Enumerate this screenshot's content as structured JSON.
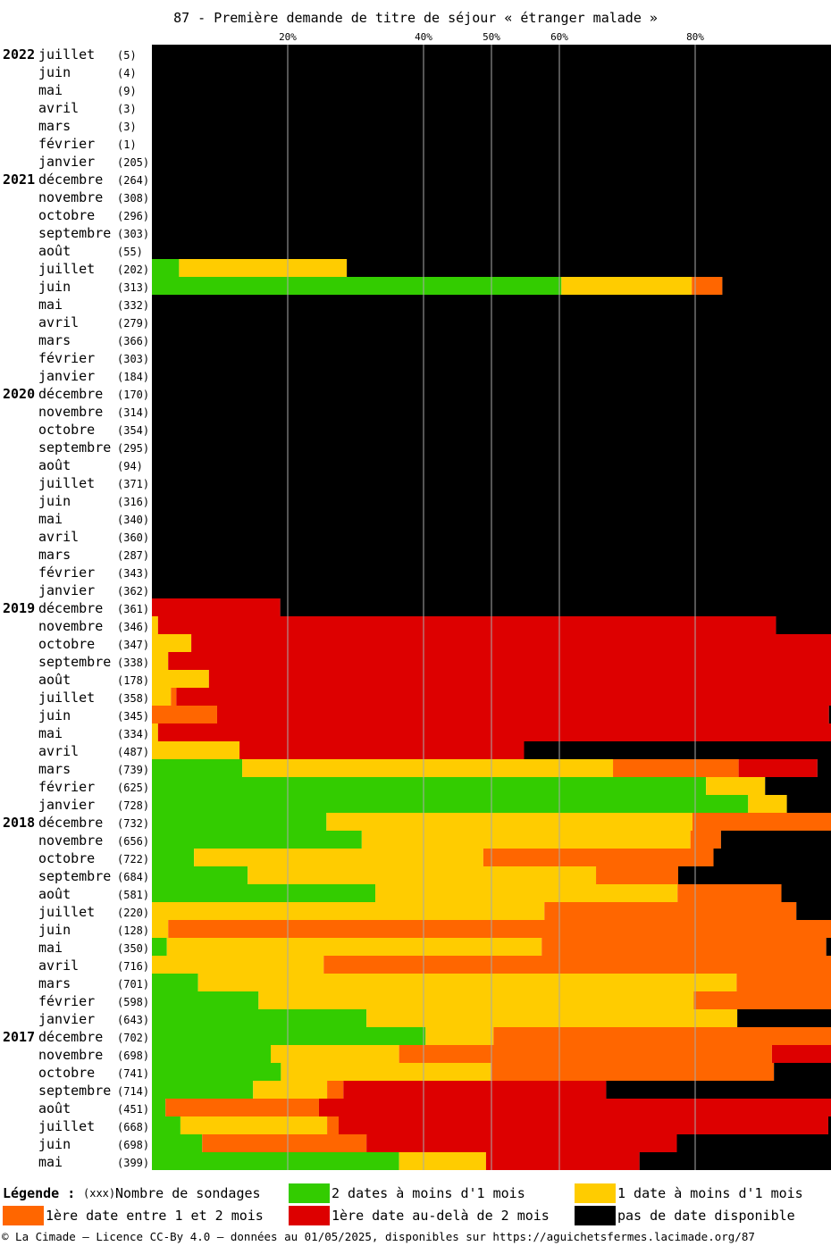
{
  "title": "87 - Première demande de titre de séjour « étranger malade »",
  "chart_data": {
    "type": "bar",
    "orientation": "horizontal-stacked-100",
    "title": "87 - Première demande de titre de séjour « étranger malade »",
    "x_ticks": [
      "20%",
      "40%",
      "50%",
      "60%",
      "80%"
    ],
    "x_tick_values": [
      20,
      40,
      50,
      60,
      80
    ],
    "xlim": [
      0,
      100
    ],
    "grid": true,
    "legend_placement": "bottom",
    "series": [
      {
        "name": "2 dates à moins d'1 mois",
        "color": "#33cc00"
      },
      {
        "name": "1 date à moins d'1 mois",
        "color": "#ffcc00"
      },
      {
        "name": "1ère date entre 1 et 2 mois",
        "color": "#ff6600"
      },
      {
        "name": "1ère date au-delà de 2 mois",
        "color": "#dd0000"
      },
      {
        "name": "pas de date disponible",
        "color": "#000000"
      }
    ],
    "rows": [
      {
        "year": "2022",
        "month": "juillet",
        "count": "(5)",
        "values": [
          0,
          0,
          0,
          0,
          100
        ]
      },
      {
        "year": "",
        "month": "juin",
        "count": "(4)",
        "values": [
          0,
          0,
          0,
          0,
          100
        ]
      },
      {
        "year": "",
        "month": "mai",
        "count": "(9)",
        "values": [
          0,
          0,
          0,
          0,
          100
        ]
      },
      {
        "year": "",
        "month": "avril",
        "count": "(3)",
        "values": [
          0,
          0,
          0,
          0,
          100
        ]
      },
      {
        "year": "",
        "month": "mars",
        "count": "(3)",
        "values": [
          0,
          0,
          0,
          0,
          100
        ]
      },
      {
        "year": "",
        "month": "février",
        "count": "(1)",
        "values": [
          0,
          0,
          0,
          0,
          100
        ]
      },
      {
        "year": "",
        "month": "janvier",
        "count": "(205)",
        "values": [
          0,
          0,
          0,
          0,
          100
        ]
      },
      {
        "year": "2021",
        "month": "décembre",
        "count": "(264)",
        "values": [
          0,
          0,
          0,
          0,
          100
        ]
      },
      {
        "year": "",
        "month": "novembre",
        "count": "(308)",
        "values": [
          0,
          0,
          0,
          0,
          100
        ]
      },
      {
        "year": "",
        "month": "octobre",
        "count": "(296)",
        "values": [
          0,
          0,
          0,
          0,
          100
        ]
      },
      {
        "year": "",
        "month": "septembre",
        "count": "(303)",
        "values": [
          0,
          0,
          0,
          0,
          100
        ]
      },
      {
        "year": "",
        "month": "août",
        "count": "(55)",
        "values": [
          0,
          0,
          0,
          0,
          100
        ]
      },
      {
        "year": "",
        "month": "juillet",
        "count": "(202)",
        "values": [
          4,
          24.7,
          0,
          0,
          71.3
        ]
      },
      {
        "year": "",
        "month": "juin",
        "count": "(313)",
        "values": [
          60.3,
          19.2,
          4.5,
          0,
          16
        ]
      },
      {
        "year": "",
        "month": "mai",
        "count": "(332)",
        "values": [
          0,
          0,
          0,
          0,
          100
        ]
      },
      {
        "year": "",
        "month": "avril",
        "count": "(279)",
        "values": [
          0,
          0,
          0,
          0,
          100
        ]
      },
      {
        "year": "",
        "month": "mars",
        "count": "(366)",
        "values": [
          0,
          0,
          0,
          0,
          100
        ]
      },
      {
        "year": "",
        "month": "février",
        "count": "(303)",
        "values": [
          0,
          0,
          0,
          0,
          100
        ]
      },
      {
        "year": "",
        "month": "janvier",
        "count": "(184)",
        "values": [
          0,
          0,
          0,
          0,
          100
        ]
      },
      {
        "year": "2020",
        "month": "décembre",
        "count": "(170)",
        "values": [
          0,
          0,
          0,
          0,
          100
        ]
      },
      {
        "year": "",
        "month": "novembre",
        "count": "(314)",
        "values": [
          0,
          0,
          0,
          0,
          100
        ]
      },
      {
        "year": "",
        "month": "octobre",
        "count": "(354)",
        "values": [
          0,
          0,
          0,
          0,
          100
        ]
      },
      {
        "year": "",
        "month": "septembre",
        "count": "(295)",
        "values": [
          0,
          0,
          0,
          0,
          100
        ]
      },
      {
        "year": "",
        "month": "août",
        "count": "(94)",
        "values": [
          0,
          0,
          0,
          0,
          100
        ]
      },
      {
        "year": "",
        "month": "juillet",
        "count": "(371)",
        "values": [
          0,
          0,
          0,
          0,
          100
        ]
      },
      {
        "year": "",
        "month": "juin",
        "count": "(316)",
        "values": [
          0,
          0,
          0,
          0,
          100
        ]
      },
      {
        "year": "",
        "month": "mai",
        "count": "(340)",
        "values": [
          0,
          0,
          0,
          0,
          100
        ]
      },
      {
        "year": "",
        "month": "avril",
        "count": "(360)",
        "values": [
          0,
          0,
          0,
          0,
          100
        ]
      },
      {
        "year": "",
        "month": "mars",
        "count": "(287)",
        "values": [
          0,
          0,
          0,
          0,
          100
        ]
      },
      {
        "year": "",
        "month": "février",
        "count": "(343)",
        "values": [
          0,
          0,
          0,
          0,
          100
        ]
      },
      {
        "year": "",
        "month": "janvier",
        "count": "(362)",
        "values": [
          0,
          0,
          0,
          0,
          100
        ]
      },
      {
        "year": "2019",
        "month": "décembre",
        "count": "(361)",
        "values": [
          0,
          0,
          0,
          18.9,
          81.1
        ]
      },
      {
        "year": "",
        "month": "novembre",
        "count": "(346)",
        "values": [
          0,
          0.9,
          0,
          91,
          8.1
        ]
      },
      {
        "year": "",
        "month": "octobre",
        "count": "(347)",
        "values": [
          0,
          5.8,
          0,
          94.2,
          0
        ]
      },
      {
        "year": "",
        "month": "septembre",
        "count": "(338)",
        "values": [
          0,
          2.4,
          0,
          97.6,
          0
        ]
      },
      {
        "year": "",
        "month": "août",
        "count": "(178)",
        "values": [
          0,
          8.4,
          0,
          91.6,
          0
        ]
      },
      {
        "year": "",
        "month": "juillet",
        "count": "(358)",
        "values": [
          0,
          2.8,
          0.8,
          96.4,
          0
        ]
      },
      {
        "year": "",
        "month": "juin",
        "count": "(345)",
        "values": [
          0,
          0,
          9.6,
          90.1,
          0.3
        ]
      },
      {
        "year": "",
        "month": "mai",
        "count": "(334)",
        "values": [
          0,
          0.9,
          0,
          99.1,
          0
        ]
      },
      {
        "year": "",
        "month": "avril",
        "count": "(487)",
        "values": [
          0,
          12.9,
          0,
          41.9,
          45.2
        ]
      },
      {
        "year": "",
        "month": "mars",
        "count": "(739)",
        "values": [
          13.3,
          54.6,
          18.5,
          11.6,
          2
        ]
      },
      {
        "year": "",
        "month": "février",
        "count": "(625)",
        "values": [
          81.6,
          8.7,
          0,
          0,
          9.7
        ]
      },
      {
        "year": "",
        "month": "janvier",
        "count": "(728)",
        "values": [
          87.8,
          5.7,
          0,
          0,
          6.5
        ]
      },
      {
        "year": "2018",
        "month": "décembre",
        "count": "(732)",
        "values": [
          25.7,
          53.9,
          20.4,
          0,
          0
        ]
      },
      {
        "year": "",
        "month": "novembre",
        "count": "(656)",
        "values": [
          30.9,
          48.4,
          4.5,
          0,
          16.2
        ]
      },
      {
        "year": "",
        "month": "octobre",
        "count": "(722)",
        "values": [
          6.2,
          42.6,
          33.9,
          0,
          17.3
        ]
      },
      {
        "year": "",
        "month": "septembre",
        "count": "(684)",
        "values": [
          14.1,
          51.3,
          12.1,
          0,
          22.5
        ]
      },
      {
        "year": "",
        "month": "août",
        "count": "(581)",
        "values": [
          32.9,
          44.5,
          15.3,
          0,
          7.3
        ]
      },
      {
        "year": "",
        "month": "juillet",
        "count": "(220)",
        "values": [
          0,
          57.8,
          37.1,
          0,
          5.1
        ]
      },
      {
        "year": "",
        "month": "juin",
        "count": "(128)",
        "values": [
          0,
          2.4,
          97.6,
          0,
          0
        ]
      },
      {
        "year": "",
        "month": "mai",
        "count": "(350)",
        "values": [
          2.2,
          55.2,
          41.9,
          0,
          0.7
        ]
      },
      {
        "year": "",
        "month": "avril",
        "count": "(716)",
        "values": [
          0,
          25.3,
          74.7,
          0,
          0
        ]
      },
      {
        "year": "",
        "month": "mars",
        "count": "(701)",
        "values": [
          6.8,
          79.3,
          13.9,
          0,
          0
        ]
      },
      {
        "year": "",
        "month": "février",
        "count": "(598)",
        "values": [
          15.7,
          64.1,
          20.2,
          0,
          0
        ]
      },
      {
        "year": "",
        "month": "janvier",
        "count": "(643)",
        "values": [
          31.6,
          54.6,
          0,
          0,
          13.8
        ]
      },
      {
        "year": "2017",
        "month": "décembre",
        "count": "(702)",
        "values": [
          40.3,
          10,
          49.7,
          0,
          0
        ]
      },
      {
        "year": "",
        "month": "novembre",
        "count": "(698)",
        "values": [
          17.5,
          18.9,
          54.9,
          8.7,
          0
        ]
      },
      {
        "year": "",
        "month": "octobre",
        "count": "(741)",
        "values": [
          19,
          30.9,
          41.7,
          0,
          8.4
        ]
      },
      {
        "year": "",
        "month": "septembre",
        "count": "(714)",
        "values": [
          14.9,
          10.9,
          2.4,
          38.7,
          33.1
        ]
      },
      {
        "year": "",
        "month": "août",
        "count": "(451)",
        "values": [
          2,
          0,
          22.6,
          75.4,
          0
        ]
      },
      {
        "year": "",
        "month": "juillet",
        "count": "(668)",
        "values": [
          4.2,
          21.6,
          1.7,
          72.1,
          0.4
        ]
      },
      {
        "year": "",
        "month": "juin",
        "count": "(698)",
        "values": [
          7.4,
          0,
          24.2,
          45.7,
          22.7
        ]
      },
      {
        "year": "",
        "month": "mai",
        "count": "(399)",
        "values": [
          36.4,
          12.8,
          0,
          22.6,
          28.2
        ]
      }
    ]
  },
  "legend": {
    "title": "Légende :",
    "count_hint": "(xxx)",
    "count_label": "Nombre de sondages",
    "items": [
      {
        "label": "2 dates à moins d'1 mois",
        "color": "#33cc00"
      },
      {
        "label": "1 date à moins d'1 mois",
        "color": "#ffcc00"
      },
      {
        "label": "1ère date entre 1 et 2 mois",
        "color": "#ff6600"
      },
      {
        "label": "1ère date au-delà de 2 mois",
        "color": "#dd0000"
      },
      {
        "label": "pas de date disponible",
        "color": "#000000"
      }
    ]
  },
  "footer": "© La Cimade — Licence CC-By 4.0 — données au 01/05/2025, disponibles sur https://aguichetsfermes.lacimade.org/87"
}
